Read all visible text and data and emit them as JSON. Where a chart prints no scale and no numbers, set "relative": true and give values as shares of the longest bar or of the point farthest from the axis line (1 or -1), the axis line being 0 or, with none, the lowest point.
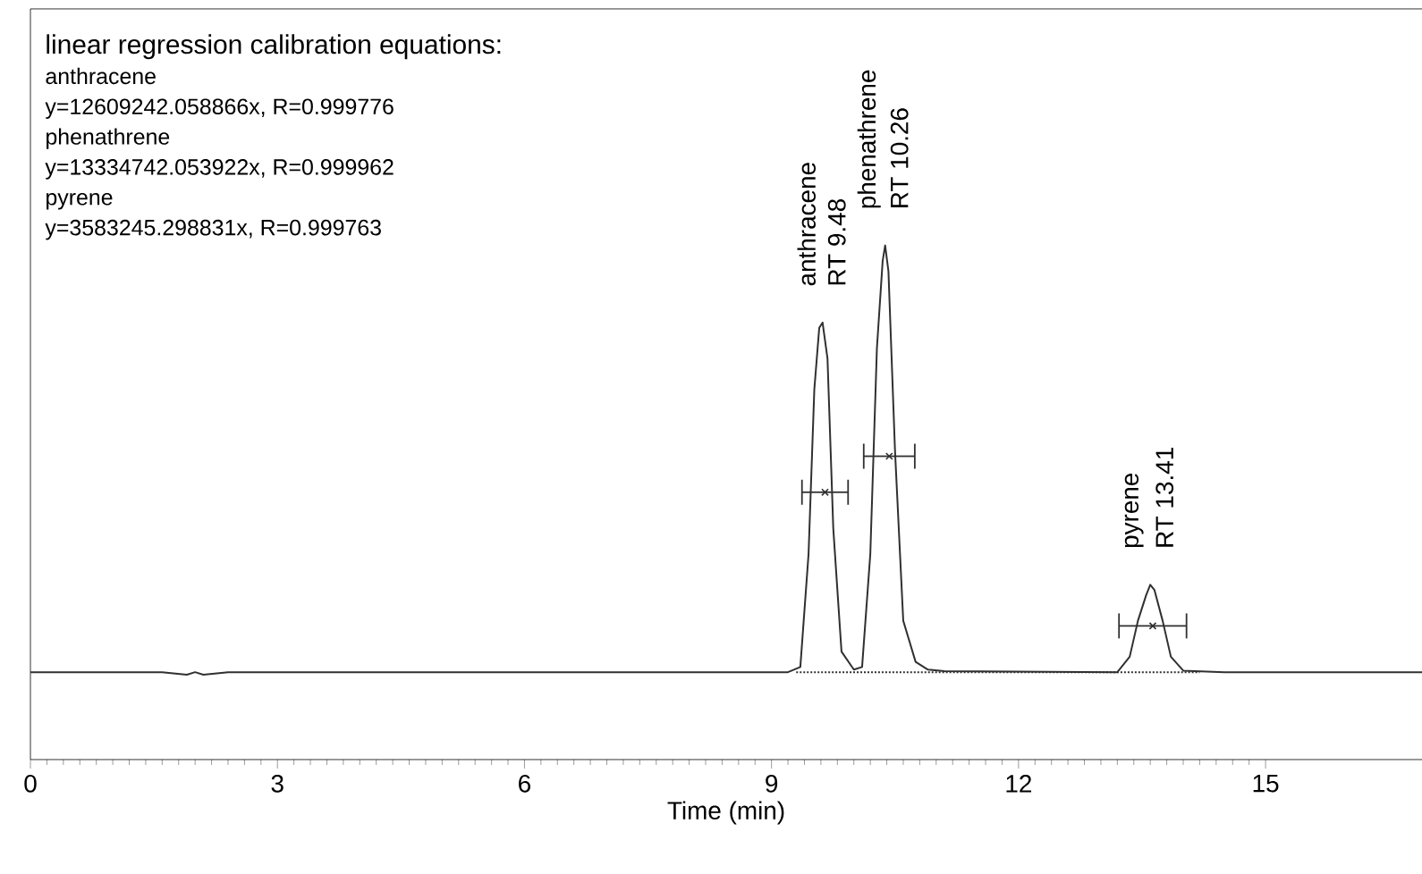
{
  "chart_data": {
    "type": "line",
    "relative": true,
    "title": "linear regression calibration equations:",
    "xlabel": "Time (min)",
    "xlim": [
      0,
      16.9
    ],
    "xticks": [
      0,
      3,
      6,
      9,
      12,
      15
    ],
    "tick_labels": "x",
    "annotations": [
      "anthracene",
      "y=12609242.058866x, R=0.999776",
      "phenathrene",
      "y=13334742.053922x, R=0.999962",
      "pyrene",
      "y=3583245.298831x,   R=0.999763",
      {
        "text": "anthracene",
        "x": 9.62,
        "y": 0.85
      },
      {
        "text": "RT 9.48",
        "x": 9.62,
        "y": 0.85
      },
      {
        "text": "phenathrene",
        "x": 10.38,
        "y": 1.0
      },
      {
        "text": "RT 10.26",
        "x": 10.38,
        "y": 1.0
      },
      {
        "text": "pyrene",
        "x": 13.6,
        "y": 0.34
      },
      {
        "text": "RT 13.41",
        "x": 13.6,
        "y": 0.34
      }
    ],
    "series": [
      {
        "color": "#303030",
        "line_style": "solid",
        "marker": "none",
        "x": [
          0,
          1.6,
          1.9,
          2.0,
          2.1,
          2.4,
          4.5,
          9.2,
          9.35,
          9.45,
          9.52,
          9.58,
          9.62,
          9.68,
          9.75,
          9.85,
          10.0,
          10.1,
          10.2,
          10.28,
          10.35,
          10.38,
          10.42,
          10.5,
          10.6,
          10.75,
          10.9,
          11.1,
          13.2,
          13.35,
          13.45,
          13.55,
          13.6,
          13.65,
          13.75,
          13.85,
          14.0,
          14.5,
          16.9
        ],
        "values": [
          0.17,
          0.17,
          0.165,
          0.17,
          0.165,
          0.17,
          0.17,
          0.17,
          0.18,
          0.4,
          0.72,
          0.84,
          0.85,
          0.78,
          0.45,
          0.21,
          0.175,
          0.18,
          0.4,
          0.8,
          0.97,
          1.0,
          0.95,
          0.6,
          0.27,
          0.19,
          0.175,
          0.172,
          0.17,
          0.2,
          0.27,
          0.32,
          0.34,
          0.33,
          0.27,
          0.2,
          0.173,
          0.17,
          0.17
        ]
      },
      {
        "color": "#303030",
        "line_style": "dotted",
        "marker": "none",
        "x": [
          9.3,
          14.2
        ],
        "values": [
          0.17,
          0.17
        ]
      },
      {
        "type": "scatter",
        "color": "#303030",
        "marker": "cross",
        "x": [
          9.65,
          10.43,
          13.63
        ],
        "values": [
          0.52,
          0.59,
          0.26
        ],
        "xerrors": [
          0.28,
          0.31,
          0.41
        ]
      }
    ]
  }
}
